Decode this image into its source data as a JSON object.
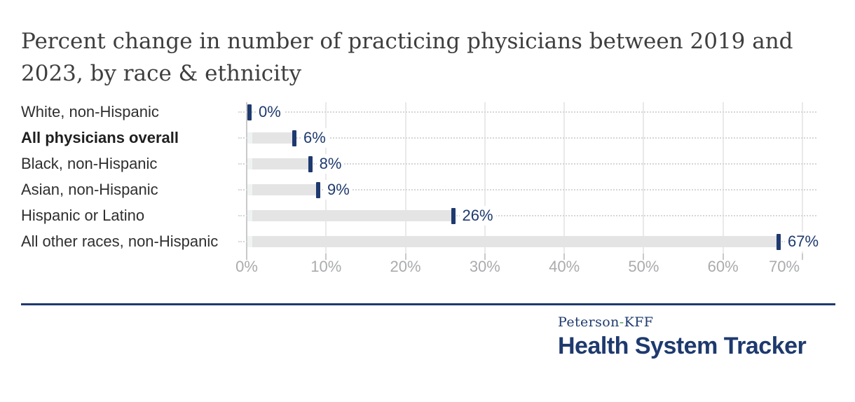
{
  "title": "Percent change in number of practicing physicians between 2019 and 2023, by race & ethnicity",
  "chart_data": {
    "type": "bar",
    "orientation": "horizontal",
    "title": "Percent change in number of practicing physicians between 2019 and 2023, by race & ethnicity",
    "title_lines": [
      "Percent change in number of practicing physicians between 2019 and",
      "2023, by race & ethnicity"
    ],
    "categories": [
      "White, non-Hispanic",
      "All physicians overall",
      "Black, non-Hispanic",
      "Asian, non-Hispanic",
      "Hispanic or Latino",
      "All other races, non-Hispanic"
    ],
    "values": [
      0,
      6,
      8,
      9,
      26,
      67
    ],
    "value_labels": [
      "0%",
      "6%",
      "8%",
      "9%",
      "26%",
      "67%"
    ],
    "emphasized_category": "All physicians overall",
    "x_ticks": [
      "0%",
      "10%",
      "20%",
      "30%",
      "40%",
      "50%",
      "60%",
      "70%"
    ],
    "x_tick_values": [
      0,
      10,
      20,
      30,
      40,
      50,
      60,
      70
    ],
    "xlim": [
      0,
      70
    ],
    "xlabel": "",
    "ylabel": "",
    "grid": "vertical gridlines on, dotted row leader lines",
    "legend": "none"
  },
  "footer": {
    "brand_prefix": "Peterson",
    "brand_hyphen": "-",
    "brand_suffix": "KFF",
    "brand_name": "Health System Tracker"
  },
  "colors": {
    "accent_navy": "#1e3a6e",
    "brand_green": "#4aa159",
    "bar_gray": "#e4e4e4",
    "title_gray": "#3e3e3e",
    "axis_label_gray": "#aaabad"
  }
}
